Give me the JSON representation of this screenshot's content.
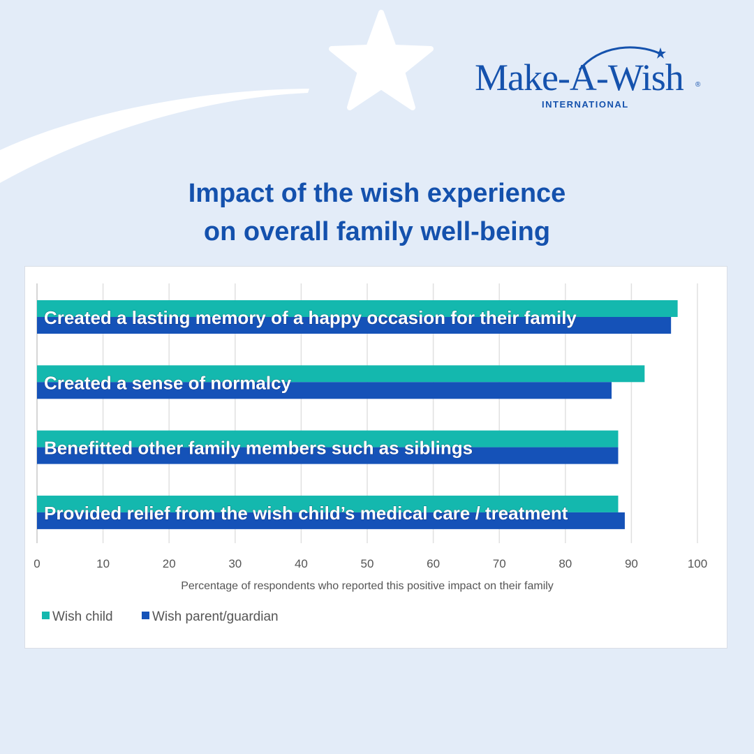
{
  "brand": {
    "name": "Make-A-Wish",
    "subtitle": "INTERNATIONAL",
    "registered": "®",
    "color": "#1552ad"
  },
  "header": {
    "title_line1": "Impact of the wish experience",
    "title_line2": "on overall family well-being"
  },
  "chart_data": {
    "type": "bar",
    "orientation": "horizontal",
    "categories": [
      "Created a lasting memory of a happy occasion for their family",
      "Created a sense of normalcy",
      "Benefitted other family members such as siblings",
      "Provided relief from the wish child’s medical care / treatment"
    ],
    "series": [
      {
        "name": "Wish child",
        "color": "#14b8ae",
        "values": [
          97,
          92,
          88,
          88
        ]
      },
      {
        "name": "Wish parent/guardian",
        "color": "#1552b8",
        "values": [
          96,
          87,
          88,
          89
        ]
      }
    ],
    "xlim": [
      0,
      100
    ],
    "xticks": [
      "0",
      "10",
      "20",
      "30",
      "40",
      "50",
      "60",
      "70",
      "80",
      "90",
      "100"
    ],
    "xlabel": "Percentage of respondents who reported this positive impact on their family",
    "grid": true,
    "legend_position": "bottom-left"
  }
}
